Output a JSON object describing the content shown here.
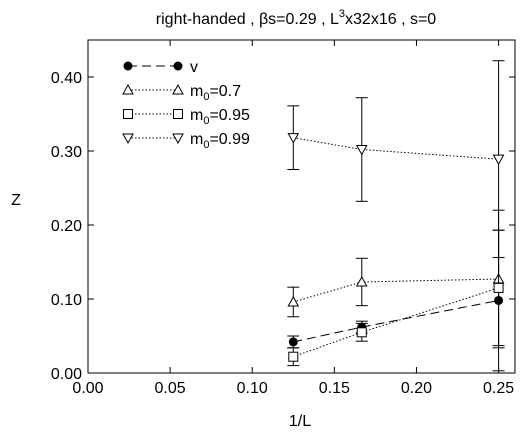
{
  "chart_data": {
    "type": "scatter",
    "title": "right-handed , βs=0.29 , L³x32x16 , s=0",
    "title_parts": {
      "before_sup": "right-handed , βs=0.29 , L",
      "sup": "3",
      "after_sup": "x32x16 , s=0"
    },
    "xlabel": "1/L",
    "ylabel": "Z",
    "xlim": [
      0.0,
      0.26
    ],
    "ylim": [
      0.0,
      0.45
    ],
    "xticks": [
      "0.00",
      "0.05",
      "0.10",
      "0.15",
      "0.20",
      "0.25"
    ],
    "yticks": [
      "0.00",
      "0.10",
      "0.20",
      "0.30",
      "0.40"
    ],
    "grid": false,
    "legend_position": "top-left",
    "series": [
      {
        "name": "v",
        "label_main": "v",
        "label_sub": "",
        "label_tail": "",
        "marker": "filled-circle",
        "line": "dashed",
        "x": [
          0.125,
          0.1667,
          0.25
        ],
        "y": [
          0.042,
          0.062,
          0.098
        ],
        "err": [
          0.008,
          0.008,
          0.095
        ]
      },
      {
        "name": "m0=0.7",
        "label_main": "m",
        "label_sub": "0",
        "label_tail": "=0.7",
        "marker": "triangle-up",
        "line": "dotted",
        "x": [
          0.125,
          0.1667,
          0.25
        ],
        "y": [
          0.096,
          0.123,
          0.127
        ],
        "err": [
          0.02,
          0.032,
          0.093
        ]
      },
      {
        "name": "m0=0.95",
        "label_main": "m",
        "label_sub": "0",
        "label_tail": "=0.95",
        "marker": "square",
        "line": "dotted",
        "x": [
          0.125,
          0.1667,
          0.25
        ],
        "y": [
          0.022,
          0.055,
          0.115
        ],
        "err": [
          0.012,
          0.012,
          0.078
        ]
      },
      {
        "name": "m0=0.99",
        "label_main": "m",
        "label_sub": "0",
        "label_tail": "=0.99",
        "marker": "triangle-down",
        "line": "dotted",
        "x": [
          0.125,
          0.1667,
          0.25
        ],
        "y": [
          0.318,
          0.302,
          0.289
        ],
        "err": [
          0.043,
          0.07,
          0.133
        ]
      }
    ]
  }
}
